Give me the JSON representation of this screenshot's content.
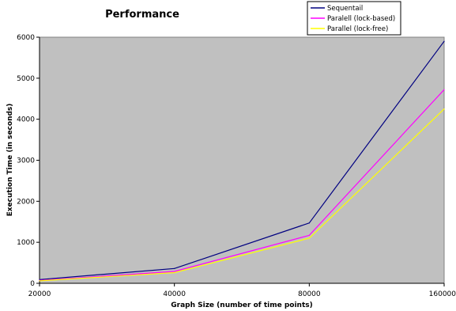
{
  "chart_data": {
    "type": "line",
    "title": "Performance",
    "xlabel": "Graph Size (number of time points)",
    "ylabel": "Execution Time (in seconds)",
    "categories": [
      "20000",
      "40000",
      "80000",
      "160000"
    ],
    "y_ticks": [
      "0",
      "1000",
      "2000",
      "3000",
      "4000",
      "5000",
      "6000"
    ],
    "ylim": [
      0,
      6000
    ],
    "grid": false,
    "plot_background": "#c0c0c0",
    "legend_position": "top-right",
    "series": [
      {
        "name": "Sequentail",
        "color": "#000080",
        "values": [
          90,
          360,
          1470,
          5900
        ]
      },
      {
        "name": "Paralell (lock-based)",
        "color": "#ff00ff",
        "values": [
          70,
          290,
          1170,
          4720
        ]
      },
      {
        "name": "Parallel (lock-free)",
        "color": "#ffff00",
        "values": [
          60,
          260,
          1100,
          4250
        ]
      }
    ]
  }
}
